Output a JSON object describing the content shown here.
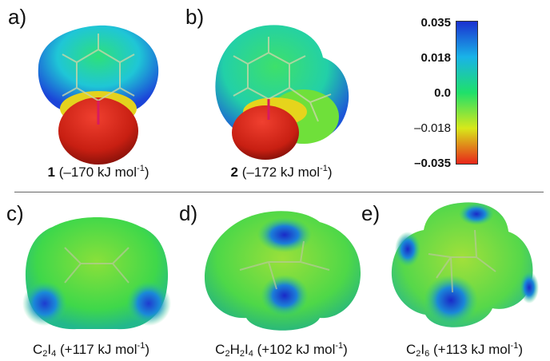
{
  "panels": [
    {
      "letter": "a)",
      "compound": "1",
      "energy_text": "(–170 kJ mol",
      "exp": "-1",
      "close": ")"
    },
    {
      "letter": "b)",
      "compound": "2",
      "energy_text": "(–172 kJ mol",
      "exp": "-1",
      "close": ")"
    },
    {
      "letter": "c)",
      "formula": [
        {
          "t": "C"
        },
        {
          "s": "2"
        },
        {
          "t": "I"
        },
        {
          "s": "4"
        }
      ],
      "energy_text": " (+117 kJ mol",
      "exp": "-1",
      "close": ")"
    },
    {
      "letter": "d)",
      "formula": [
        {
          "t": "C"
        },
        {
          "s": "2"
        },
        {
          "t": "H"
        },
        {
          "s": "2"
        },
        {
          "t": "I"
        },
        {
          "s": "4"
        }
      ],
      "energy_text": " (+102 kJ mol",
      "exp": "-1",
      "close": ")"
    },
    {
      "letter": "e)",
      "formula": [
        {
          "t": "C"
        },
        {
          "s": "2"
        },
        {
          "t": "I"
        },
        {
          "s": "6"
        }
      ],
      "energy_text": " (+113 kJ mol",
      "exp": "-1",
      "close": ")"
    }
  ],
  "color_scale": {
    "ticks": [
      "0.035",
      "0.018",
      "0.0",
      "–0.018",
      "–0.035"
    ],
    "colors_top_to_bottom": [
      "#1a2fd0",
      "#19b3e8",
      "#1fe06a",
      "#d8e81a",
      "#e8241a"
    ]
  }
}
